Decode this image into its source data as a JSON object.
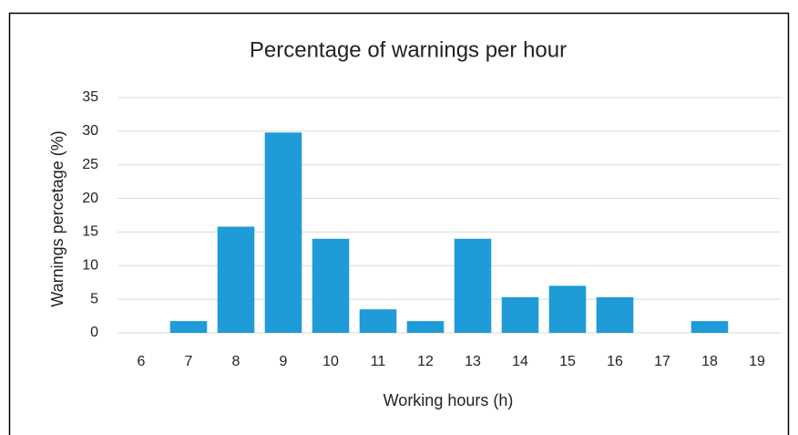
{
  "chart_data": {
    "type": "bar",
    "title": "Percentage of warnings per hour",
    "x_label": "Working hours (h)",
    "y_label": "Warnings percetage (%)",
    "categories": [
      "6",
      "7",
      "8",
      "9",
      "10",
      "11",
      "12",
      "13",
      "14",
      "15",
      "16",
      "17",
      "18",
      "19"
    ],
    "values": [
      0,
      1.75,
      15.8,
      29.8,
      14.0,
      3.5,
      1.75,
      14.0,
      5.3,
      7.0,
      5.3,
      0,
      1.75,
      0
    ],
    "color": "#1f9bd8",
    "ylim": [
      0,
      35
    ],
    "yticks": [
      0,
      5,
      10,
      15,
      20,
      25,
      30,
      35
    ],
    "grid": true
  }
}
